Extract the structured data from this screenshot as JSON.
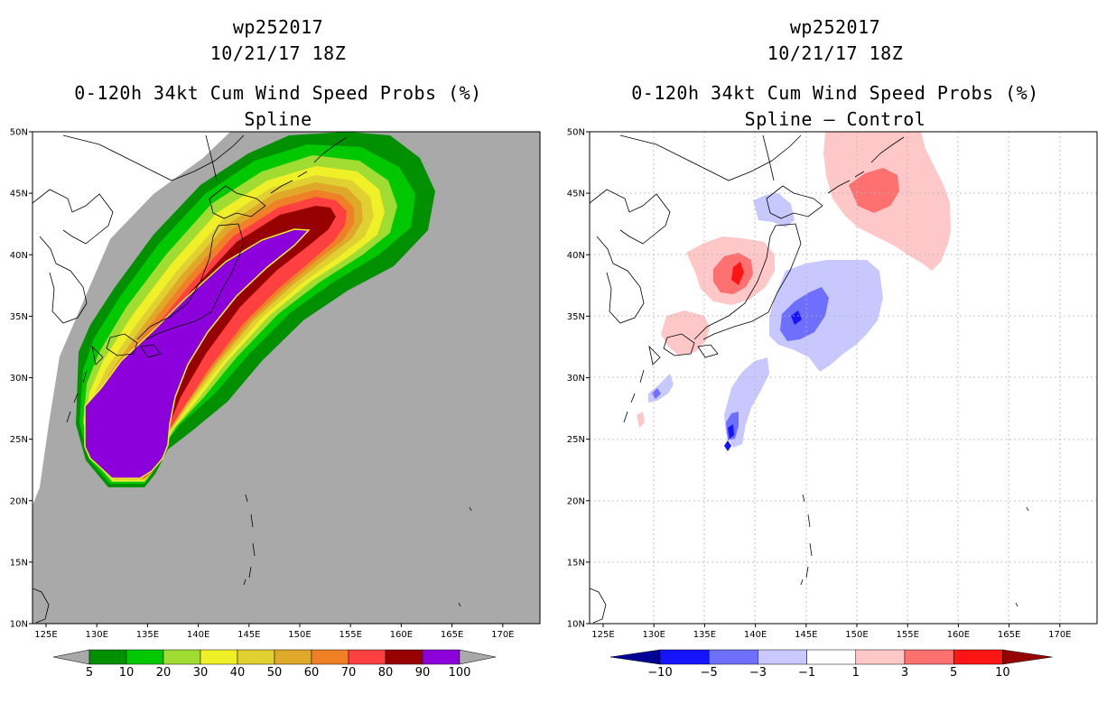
{
  "left_panel": {
    "storm_id": "wp252017",
    "datetime": "10/21/17 18Z",
    "product": "0-120h 34kt Cum Wind Speed Probs (%)",
    "subtitle": "Spline",
    "colorbar": {
      "labels": [
        "5",
        "10",
        "20",
        "30",
        "40",
        "50",
        "60",
        "70",
        "80",
        "90",
        "100"
      ],
      "colors": [
        "#009000",
        "#00c800",
        "#a0dc32",
        "#f0f028",
        "#e0d032",
        "#e0a828",
        "#f08028",
        "#ff4040",
        "#960000",
        "#8c00dc"
      ]
    }
  },
  "right_panel": {
    "storm_id": "wp252017",
    "datetime": "10/21/17 18Z",
    "product": "0-120h 34kt Cum Wind Speed Probs (%)",
    "subtitle": "Spline – Control",
    "colorbar": {
      "labels": [
        "−10",
        "−5",
        "−3",
        "−1",
        "1",
        "3",
        "5",
        "10"
      ],
      "colors": [
        "#000096",
        "#1414ff",
        "#6e6eff",
        "#c8c8ff",
        "#ffffff",
        "#ffc8c8",
        "#ff7070",
        "#ff1414",
        "#960000"
      ]
    }
  },
  "axes": {
    "lat_labels": [
      "50N",
      "45N",
      "40N",
      "35N",
      "30N",
      "25N",
      "20N",
      "15N",
      "10N"
    ],
    "lon_labels": [
      "125E",
      "130E",
      "135E",
      "140E",
      "145E",
      "150E",
      "155E",
      "160E",
      "165E",
      "170E"
    ]
  }
}
